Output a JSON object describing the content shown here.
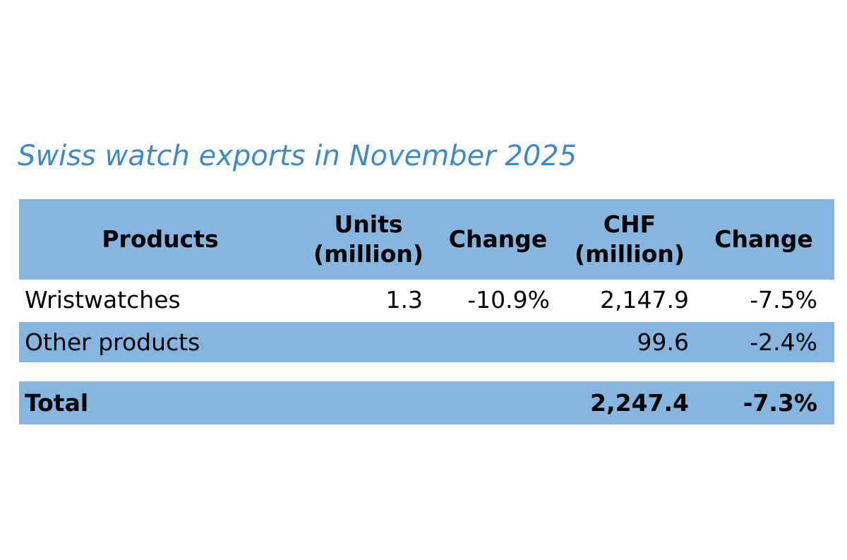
{
  "title": "Swiss watch exports in November 2025",
  "table": {
    "headers": {
      "products": "Products",
      "units_line1": "Units",
      "units_line2": "(million)",
      "change1": "Change",
      "chf_line1": "CHF",
      "chf_line2": "(million)",
      "change2": "Change"
    },
    "rows": [
      {
        "product": "Wristwatches",
        "units": "1.3",
        "units_change": "-10.9%",
        "chf": "2,147.9",
        "chf_change": "-7.5%"
      },
      {
        "product": "Other products",
        "units": "",
        "units_change": "",
        "chf": "99.6",
        "chf_change": "-2.4%"
      }
    ],
    "total": {
      "label": "Total",
      "units": "",
      "units_change": "",
      "chf": "2,247.4",
      "chf_change": "-7.3%"
    }
  },
  "colors": {
    "title": "#3f89c6",
    "header_fill": "#86b6e0",
    "row_fill": "#86b6e0",
    "text": "#000000"
  }
}
